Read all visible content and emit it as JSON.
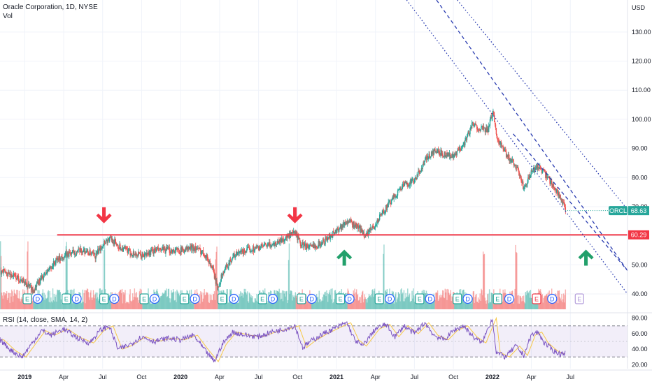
{
  "legend": {
    "symbol_line": "Oracle Corporation, 1D, NYSE",
    "volume_label": "Vol",
    "rsi_label": "RSI (14, close, SMA, 14, 2)"
  },
  "chart_data": {
    "type": "candlestick",
    "currency": "USD",
    "last_price": 68.63,
    "last_price_label": "68.63",
    "ticker": "ORCL",
    "support_level": 60.29,
    "support_label": "60.29",
    "y_ticks": [
      "130.00",
      "120.00",
      "110.00",
      "100.00",
      "90.00",
      "80.00",
      "70.00",
      "60.00",
      "50.00",
      "40.00"
    ],
    "y_tick_values": [
      130,
      120,
      110,
      100,
      90,
      80,
      70,
      60,
      50,
      40
    ],
    "ylim": [
      34,
      141
    ],
    "x_ticks": [
      "2019",
      "Apr",
      "Jul",
      "Oct",
      "2020",
      "Apr",
      "Jul",
      "Oct",
      "2021",
      "Apr",
      "Jul",
      "Oct",
      "2022",
      "Apr",
      "Jul"
    ],
    "x_tick_bold": [
      true,
      false,
      false,
      false,
      true,
      false,
      false,
      false,
      true,
      false,
      false,
      false,
      true,
      false,
      false
    ],
    "x_tick_months": [
      0,
      3,
      6,
      9,
      12,
      15,
      18,
      21,
      24,
      27,
      30,
      33,
      36,
      39,
      42
    ],
    "x_range_months": [
      -1.9,
      46.4
    ],
    "data_end_month": 41.6,
    "price_path": [
      [
        -1.9,
        48
      ],
      [
        -0.8,
        46
      ],
      [
        0,
        44
      ],
      [
        0.6,
        41
      ],
      [
        1.2,
        45
      ],
      [
        2.5,
        52
      ],
      [
        3.5,
        54
      ],
      [
        4.5,
        55
      ],
      [
        5.4,
        53
      ],
      [
        6.1,
        58
      ],
      [
        6.6,
        59
      ],
      [
        7.3,
        56
      ],
      [
        8.2,
        54
      ],
      [
        9.0,
        53
      ],
      [
        10.0,
        55
      ],
      [
        11.0,
        55
      ],
      [
        12.0,
        55
      ],
      [
        13.0,
        56
      ],
      [
        13.8,
        54
      ],
      [
        14.4,
        49
      ],
      [
        14.8,
        42
      ],
      [
        15.2,
        47
      ],
      [
        16.0,
        53
      ],
      [
        17.0,
        55
      ],
      [
        18.0,
        56
      ],
      [
        19.0,
        57
      ],
      [
        20.0,
        59
      ],
      [
        20.8,
        61
      ],
      [
        21.2,
        57
      ],
      [
        22.0,
        56
      ],
      [
        23.0,
        58
      ],
      [
        24.0,
        62
      ],
      [
        24.8,
        65
      ],
      [
        25.6,
        63
      ],
      [
        26.2,
        60
      ],
      [
        27.0,
        64
      ],
      [
        27.5,
        68
      ],
      [
        28.2,
        72
      ],
      [
        29.0,
        77
      ],
      [
        30.0,
        79
      ],
      [
        30.8,
        86
      ],
      [
        31.5,
        89
      ],
      [
        32.4,
        88
      ],
      [
        33.0,
        87
      ],
      [
        33.8,
        92
      ],
      [
        34.4,
        98
      ],
      [
        35.0,
        97
      ],
      [
        35.6,
        96
      ],
      [
        36.0,
        103
      ],
      [
        36.3,
        94
      ],
      [
        37.0,
        88
      ],
      [
        37.8,
        84
      ],
      [
        38.4,
        76
      ],
      [
        39.0,
        82
      ],
      [
        39.5,
        84
      ],
      [
        40.0,
        81
      ],
      [
        40.7,
        77
      ],
      [
        41.2,
        73
      ],
      [
        41.6,
        68.63
      ]
    ],
    "volume_spikes_months": [
      -1.9,
      0.2,
      3.2,
      6.1,
      14.7,
      20.3,
      27.6,
      35.3,
      37.8
    ],
    "earnings_markers": [
      {
        "label": "E",
        "month": 0.2,
        "future": false
      },
      {
        "label": "D",
        "month": 1.0,
        "future": false
      },
      {
        "label": "E",
        "month": 3.2,
        "future": false
      },
      {
        "label": "D",
        "month": 4.0,
        "future": false
      },
      {
        "label": "E",
        "month": 6.1,
        "future": false
      },
      {
        "label": "D",
        "month": 6.9,
        "future": false
      },
      {
        "label": "E",
        "month": 9.2,
        "future": false
      },
      {
        "label": "D",
        "month": 10.0,
        "future": false
      },
      {
        "label": "E",
        "month": 12.3,
        "future": false
      },
      {
        "label": "D",
        "month": 13.1,
        "future": false
      },
      {
        "label": "E",
        "month": 15.2,
        "future": false
      },
      {
        "label": "D",
        "month": 16.1,
        "future": false
      },
      {
        "label": "E",
        "month": 18.3,
        "future": false
      },
      {
        "label": "D",
        "month": 19.1,
        "future": false
      },
      {
        "label": "E",
        "month": 21.3,
        "future": false
      },
      {
        "label": "D",
        "month": 22.1,
        "future": false
      },
      {
        "label": "E",
        "month": 24.3,
        "future": false
      },
      {
        "label": "D",
        "month": 25.0,
        "future": false
      },
      {
        "label": "E",
        "month": 27.3,
        "future": false
      },
      {
        "label": "D",
        "month": 28.1,
        "future": false
      },
      {
        "label": "E",
        "month": 30.4,
        "future": false
      },
      {
        "label": "D",
        "month": 31.2,
        "future": false
      },
      {
        "label": "E",
        "month": 33.3,
        "future": false
      },
      {
        "label": "D",
        "month": 34.1,
        "future": false
      },
      {
        "label": "E",
        "month": 36.4,
        "future": false
      },
      {
        "label": "D",
        "month": 37.3,
        "future": false
      },
      {
        "label": "E",
        "month": 39.4,
        "future": false,
        "negative": true
      },
      {
        "label": "D",
        "month": 40.6,
        "future": false
      },
      {
        "label": "E",
        "month": 42.7,
        "future": true
      }
    ],
    "rsi": {
      "ticks": [
        "80.00",
        "60.00",
        "40.00",
        "20.00"
      ],
      "tick_values": [
        80,
        60,
        40,
        20
      ],
      "ylim": [
        15,
        85
      ],
      "upper_band": 70,
      "lower_band": 30,
      "path": [
        [
          -1.9,
          52
        ],
        [
          -1.0,
          38
        ],
        [
          -0.2,
          30
        ],
        [
          0.5,
          46
        ],
        [
          1.3,
          64
        ],
        [
          2.0,
          58
        ],
        [
          3.0,
          66
        ],
        [
          4.0,
          55
        ],
        [
          5.0,
          48
        ],
        [
          5.8,
          64
        ],
        [
          6.5,
          70
        ],
        [
          7.2,
          40
        ],
        [
          8.0,
          45
        ],
        [
          9.0,
          56
        ],
        [
          10.0,
          50
        ],
        [
          11.0,
          54
        ],
        [
          12.0,
          52
        ],
        [
          13.0,
          58
        ],
        [
          13.8,
          40
        ],
        [
          14.6,
          24
        ],
        [
          15.2,
          46
        ],
        [
          16.0,
          62
        ],
        [
          17.0,
          58
        ],
        [
          18.0,
          56
        ],
        [
          19.0,
          62
        ],
        [
          20.0,
          66
        ],
        [
          20.8,
          70
        ],
        [
          21.4,
          42
        ],
        [
          22.0,
          50
        ],
        [
          23.0,
          60
        ],
        [
          24.0,
          68
        ],
        [
          24.8,
          74
        ],
        [
          25.4,
          52
        ],
        [
          26.0,
          44
        ],
        [
          27.0,
          66
        ],
        [
          27.8,
          72
        ],
        [
          28.5,
          56
        ],
        [
          29.2,
          70
        ],
        [
          30.0,
          60
        ],
        [
          30.8,
          74
        ],
        [
          31.5,
          58
        ],
        [
          32.3,
          52
        ],
        [
          33.0,
          64
        ],
        [
          33.8,
          70
        ],
        [
          34.5,
          56
        ],
        [
          35.2,
          48
        ],
        [
          36.0,
          80
        ],
        [
          36.3,
          36
        ],
        [
          37.0,
          30
        ],
        [
          37.8,
          44
        ],
        [
          38.4,
          32
        ],
        [
          39.0,
          58
        ],
        [
          39.5,
          62
        ],
        [
          40.0,
          48
        ],
        [
          40.7,
          38
        ],
        [
          41.2,
          34
        ],
        [
          41.6,
          36
        ]
      ]
    },
    "annotations": {
      "down_arrows": [
        {
          "month": 6.1,
          "price": 64.5
        },
        {
          "month": 20.8,
          "price": 64.5
        }
      ],
      "up_arrows": [
        {
          "month": 24.6,
          "price": 55
        },
        {
          "month": 43.2,
          "price": 55
        }
      ],
      "channel_lines": [
        {
          "style": "dotted",
          "from": [
            29.4,
            141
          ],
          "to": [
            46.4,
            40
          ]
        },
        {
          "style": "dashed",
          "from": [
            31.7,
            141
          ],
          "to": [
            46.4,
            48
          ]
        },
        {
          "style": "dotted",
          "from": [
            33.3,
            141
          ],
          "to": [
            46.4,
            69
          ]
        },
        {
          "style": "dashed",
          "from": [
            37.6,
            95
          ],
          "to": [
            46.4,
            48
          ]
        }
      ],
      "support_start_month": 2.5
    }
  }
}
